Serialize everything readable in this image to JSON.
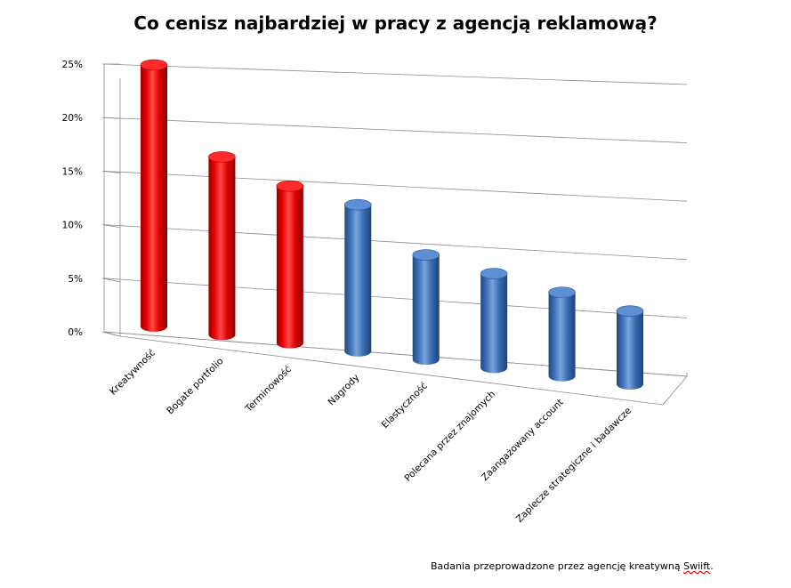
{
  "chart_data": {
    "type": "bar",
    "title": "Co cenisz najbardziej w pracy z agencją reklamową?",
    "categories": [
      "Kreatywność",
      "Bogate portfolio",
      "Terminowość",
      "Nagrody",
      "Elastyczność",
      "Polecana przez znajomych",
      "Zaangażowany account",
      "Zaplecze strategiczne i badawcze"
    ],
    "values": [
      25,
      17,
      15,
      14,
      10,
      9,
      8,
      7
    ],
    "colors": [
      "#e00000",
      "#e00000",
      "#e00000",
      "#3f74bf",
      "#3f74bf",
      "#3f74bf",
      "#3f74bf",
      "#3f74bf"
    ],
    "ylim": [
      0,
      25
    ],
    "yticks": [
      "0%",
      "5%",
      "10%",
      "15%",
      "20%",
      "25%"
    ],
    "grid": true,
    "style": "3d-cylinder"
  },
  "source": {
    "prefix": "Badania przeprowadzone przez agencję kreatywną ",
    "name": "Swiift",
    "suffix": "."
  }
}
